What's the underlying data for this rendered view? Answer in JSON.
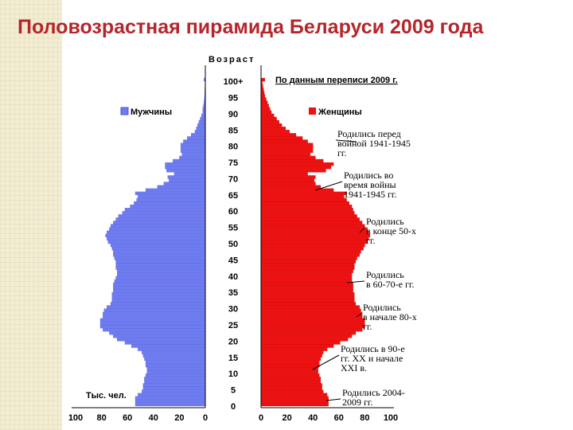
{
  "title": "Половозрастная пирамида Беларуси 2009 года",
  "colors": {
    "male": "#6f7cf0",
    "female": "#ee1111",
    "title": "#b5252a"
  },
  "chart_data": {
    "type": "bar",
    "orientation": "horizontal-population-pyramid",
    "y_axis_title": "Возраст",
    "x_unit_label": "Тыс. чел.",
    "source_note": "По данным переписи 2009 г.",
    "x_ticks_left": [
      "100",
      "80",
      "60",
      "40",
      "20",
      "0"
    ],
    "x_ticks_right": [
      "0",
      "20",
      "40",
      "60",
      "80",
      "100"
    ],
    "y_ticks": [
      "100+",
      "95",
      "90",
      "85",
      "80",
      "75",
      "70",
      "65",
      "60",
      "55",
      "50",
      "45",
      "40",
      "35",
      "30",
      "25",
      "20",
      "15",
      "10",
      "5",
      "0"
    ],
    "xlim": [
      0,
      100
    ],
    "series": [
      {
        "name": "Мужчины",
        "side": "left",
        "values": [
          54,
          54,
          54,
          52,
          49,
          48,
          48,
          47,
          47,
          46,
          45,
          45,
          46,
          46,
          47,
          48,
          49,
          52,
          57,
          62,
          68,
          71,
          74,
          79,
          81,
          81,
          81,
          79,
          79,
          78,
          76,
          73,
          72,
          72,
          72,
          71,
          71,
          71,
          70,
          69,
          68,
          68,
          69,
          69,
          69,
          70,
          71,
          71,
          72,
          73,
          75,
          76,
          77,
          76,
          74,
          73,
          71,
          69,
          67,
          64,
          62,
          58,
          55,
          53,
          52,
          54,
          46,
          37,
          32,
          28,
          29,
          24,
          30,
          31,
          31,
          25,
          20,
          18,
          19,
          19,
          19,
          17,
          14,
          11,
          8,
          7,
          6,
          5,
          4,
          3,
          2,
          2,
          1.5,
          1,
          0.8,
          0.6,
          0.5,
          0.4,
          0.3,
          0.2,
          1
        ]
      },
      {
        "name": "Женщины",
        "side": "right",
        "values": [
          52,
          52,
          52,
          51,
          48,
          47,
          47,
          46,
          46,
          45,
          44,
          44,
          45,
          45,
          46,
          47,
          48,
          51,
          56,
          61,
          67,
          70,
          73,
          78,
          80,
          80,
          80,
          78,
          78,
          77,
          76,
          73,
          72,
          72,
          72,
          71,
          71,
          71,
          70,
          70,
          70,
          71,
          72,
          72,
          73,
          74,
          76,
          77,
          79,
          80,
          82,
          83,
          84,
          83,
          82,
          80,
          78,
          76,
          74,
          72,
          71,
          70,
          68,
          66,
          64,
          66,
          56,
          46,
          42,
          41,
          42,
          36,
          50,
          54,
          56,
          48,
          42,
          38,
          40,
          40,
          40,
          36,
          32,
          27,
          22,
          19,
          16,
          14,
          12,
          10,
          8,
          7,
          6,
          5,
          4,
          3,
          2.5,
          2,
          1.5,
          1,
          3
        ]
      }
    ]
  },
  "legend": {
    "male": "Мужчины",
    "female": "Женщины"
  },
  "annotations": [
    {
      "id": "a1",
      "lines": [
        "Родились перед",
        "войной 1941-1945",
        "гг."
      ],
      "age": 78
    },
    {
      "id": "a2",
      "lines": [
        "Родились во",
        "время войны",
        "1941-1945 гг."
      ],
      "age": 67
    },
    {
      "id": "a3",
      "lines": [
        "Родились",
        "в конце 50-х",
        "гг."
      ],
      "age": 52
    },
    {
      "id": "a4",
      "lines": [
        "Родились",
        "в 60-70-е гг."
      ],
      "age": 38
    },
    {
      "id": "a5",
      "lines": [
        "Родились",
        "в начале 80-х",
        "гг."
      ],
      "age": 27
    },
    {
      "id": "a6",
      "lines": [
        "Родились в 90-е",
        "гг. XX и начале",
        "XXI в."
      ],
      "age": 11
    },
    {
      "id": "a7",
      "lines": [
        "Родились 2004-",
        "2009 гг."
      ],
      "age": 3
    }
  ]
}
